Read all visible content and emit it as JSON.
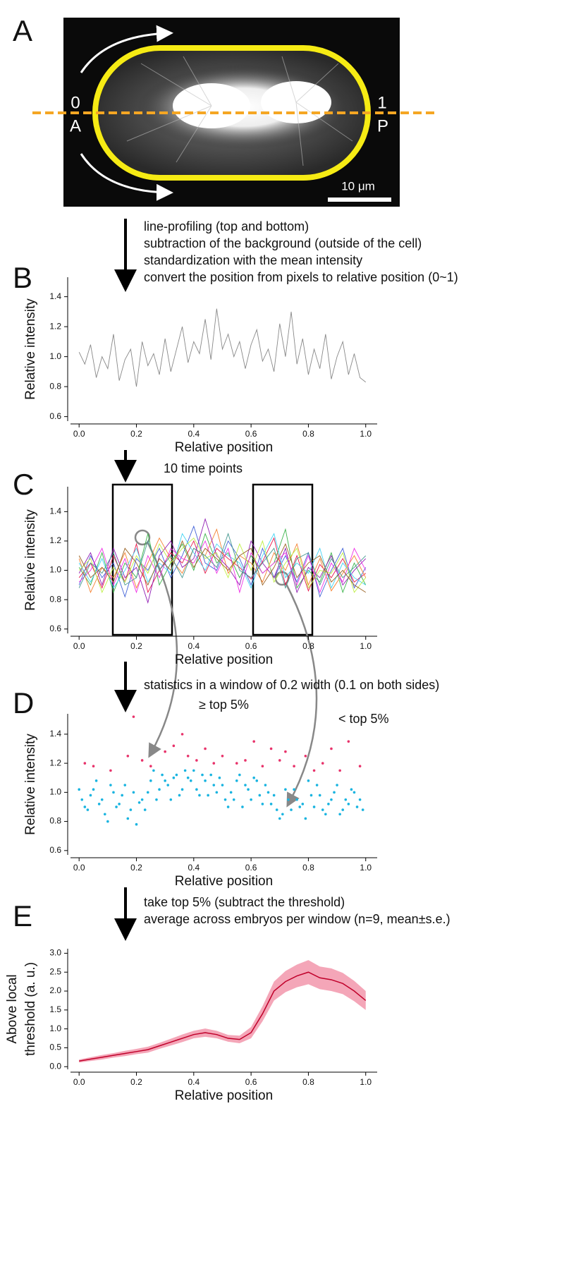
{
  "panel_a": {
    "label": "A",
    "left_index": "0",
    "left_end": "A",
    "right_index": "1",
    "right_end": "P",
    "scale_bar": "10 μm"
  },
  "steps": [
    [
      "line-profiling (top and bottom)",
      "subtraction of the background (outside of the cell)",
      "standardization with the mean intensity",
      "convert the position from pixels to relative position (0~1)"
    ],
    [
      "10 time points"
    ],
    [
      "statistics in a window of 0.2 width (0.1 on both sides)"
    ],
    [
      "take top 5% (subtract the threshold)",
      "average across embryos per window (n=9, mean±s.e.)"
    ]
  ],
  "chart_data": [
    {
      "panel": "B",
      "type": "line",
      "xlabel": "Relative position",
      "ylabel": "Relative intensity",
      "xlim": [
        -0.03,
        1.04
      ],
      "xticks": [
        {
          "value": 0,
          "label": "0.0"
        },
        0.2,
        0.4,
        0.6,
        0.8,
        {
          "value": 1,
          "label": "1.0"
        }
      ],
      "ylim": [
        0.57,
        1.53
      ],
      "yticks": [
        0.6,
        0.8,
        {
          "value": 1,
          "label": "1.0"
        },
        1.2,
        1.4
      ],
      "x": [
        0,
        0.02,
        0.04,
        0.06,
        0.08,
        0.1,
        0.12,
        0.14,
        0.16,
        0.18,
        0.2,
        0.22,
        0.24,
        0.26,
        0.28,
        0.3,
        0.32,
        0.34,
        0.36,
        0.38,
        0.4,
        0.42,
        0.44,
        0.46,
        0.48,
        0.5,
        0.52,
        0.54,
        0.56,
        0.58,
        0.6,
        0.62,
        0.64,
        0.66,
        0.68,
        0.7,
        0.72,
        0.74,
        0.76,
        0.78,
        0.8,
        0.82,
        0.84,
        0.86,
        0.88,
        0.9,
        0.92,
        0.94,
        0.96,
        0.98,
        1
      ],
      "series": [
        {
          "color": "#888888",
          "values": [
            1.03,
            0.95,
            1.08,
            0.86,
            1.0,
            0.92,
            1.15,
            0.84,
            0.98,
            1.05,
            0.8,
            1.1,
            0.94,
            1.02,
            0.88,
            1.12,
            0.9,
            1.05,
            1.2,
            0.96,
            1.1,
            1.02,
            1.25,
            0.98,
            1.32,
            1.05,
            1.15,
            1.0,
            1.1,
            0.92,
            1.08,
            1.18,
            0.97,
            1.05,
            0.9,
            1.22,
            1.0,
            1.3,
            0.95,
            1.12,
            0.88,
            1.05,
            0.92,
            1.15,
            0.85,
            1.0,
            1.1,
            0.88,
            1.02,
            0.86,
            0.83
          ]
        }
      ]
    },
    {
      "panel": "C",
      "type": "line",
      "xlabel": "Relative position",
      "ylabel": "Relative intensity",
      "xlim": [
        -0.03,
        1.04
      ],
      "xticks": [
        {
          "value": 0,
          "label": "0.0"
        },
        0.2,
        0.4,
        0.6,
        0.8,
        {
          "value": 1,
          "label": "1.0"
        }
      ],
      "ylim": [
        0.57,
        1.57
      ],
      "yticks": [
        0.6,
        0.8,
        {
          "value": 1,
          "label": "1.0"
        },
        1.2,
        1.4
      ],
      "x": [
        0,
        0.04,
        0.08,
        0.12,
        0.16,
        0.2,
        0.24,
        0.28,
        0.32,
        0.36,
        0.4,
        0.44,
        0.48,
        0.52,
        0.56,
        0.6,
        0.64,
        0.68,
        0.72,
        0.76,
        0.8,
        0.84,
        0.88,
        0.92,
        0.96,
        1
      ],
      "series": [
        {
          "color": "#e6194b",
          "values": [
            0.95,
            1.05,
            0.88,
            1.1,
            0.92,
            1.18,
            0.85,
            1.0,
            1.12,
            1.05,
            1.2,
            0.98,
            1.15,
            1.08,
            1.02,
            0.94,
            1.06,
            1.22,
            0.9,
            1.1,
            0.86,
            1.04,
            0.95,
            1.08,
            0.92,
            0.98
          ]
        },
        {
          "color": "#3cb44b",
          "values": [
            1.02,
            0.9,
            1.12,
            0.85,
            1.05,
            0.95,
            1.25,
            0.9,
            1.05,
            1.18,
            1.0,
            1.25,
            1.05,
            1.12,
            0.95,
            1.1,
            0.98,
            1.05,
            1.28,
            0.88,
            1.0,
            0.92,
            1.12,
            0.85,
            1.05,
            0.9
          ]
        },
        {
          "color": "#4363d8",
          "values": [
            0.9,
            1.1,
            0.95,
            1.05,
            0.82,
            1.08,
            1.0,
            1.15,
            0.95,
            1.1,
            1.3,
            1.05,
            1.0,
            1.2,
            1.08,
            0.9,
            1.15,
            0.95,
            1.1,
            0.92,
            1.12,
            0.82,
            1.0,
            1.15,
            0.88,
            1.02
          ]
        },
        {
          "color": "#f58231",
          "values": [
            1.08,
            0.85,
            1.02,
            0.95,
            1.12,
            0.88,
            1.05,
            1.22,
            1.08,
            0.98,
            1.15,
            1.1,
            1.28,
            0.98,
            1.1,
            1.05,
            0.92,
            1.12,
            1.0,
            1.18,
            0.9,
            1.08,
            0.86,
            0.98,
            1.1,
            0.95
          ]
        },
        {
          "color": "#911eb4",
          "values": [
            0.98,
            1.12,
            0.9,
            1.15,
            0.95,
            1.02,
            0.78,
            1.1,
            1.2,
            1.02,
            1.08,
            1.35,
            1.1,
            1.02,
            0.9,
            1.2,
            1.05,
            0.95,
            1.15,
            0.85,
            1.02,
            0.95,
            1.1,
            0.9,
            1.0,
            1.08
          ]
        },
        {
          "color": "#42d4f4",
          "values": [
            1.05,
            0.92,
            1.08,
            0.88,
            1.0,
            1.15,
            0.92,
            1.05,
            0.98,
            1.25,
            1.12,
            1.0,
            1.18,
            1.1,
            1.05,
            0.88,
            1.1,
            1.25,
            0.95,
            1.05,
            0.98,
            1.15,
            0.88,
            1.05,
            0.95,
            0.9
          ]
        },
        {
          "color": "#f032e6",
          "values": [
            0.92,
            1.0,
            1.15,
            0.9,
            1.08,
            0.85,
            1.1,
            0.95,
            1.15,
            1.08,
            1.05,
            1.2,
            0.98,
            1.15,
            0.85,
            1.12,
            0.98,
            1.05,
            1.12,
            0.9,
            1.1,
            0.85,
            1.05,
            0.92,
            1.15,
            1.0
          ]
        },
        {
          "color": "#bfef45",
          "values": [
            1.0,
            1.08,
            0.85,
            1.02,
            0.92,
            1.1,
            0.98,
            1.18,
            1.05,
            1.15,
            1.22,
            1.08,
            1.12,
            0.95,
            1.18,
            1.0,
            1.2,
            0.92,
            1.05,
            1.15,
            0.88,
            1.0,
            0.98,
            1.12,
            0.85,
            0.95
          ]
        },
        {
          "color": "#469990",
          "values": [
            0.88,
            1.05,
            0.98,
            1.12,
            0.9,
            0.95,
            1.2,
            1.0,
            1.1,
            0.95,
            1.15,
            1.1,
            1.02,
            1.25,
            1.0,
            0.95,
            1.05,
            1.15,
            0.88,
            1.08,
            1.12,
            0.9,
            1.08,
            0.95,
            1.02,
            1.1
          ]
        },
        {
          "color": "#9a6324",
          "values": [
            1.1,
            0.95,
            1.02,
            0.92,
            1.15,
            1.05,
            0.9,
            1.08,
            1.0,
            1.2,
            1.02,
            1.15,
            1.08,
            1.0,
            1.1,
            1.15,
            0.9,
            1.02,
            1.18,
            0.95,
            1.05,
            1.1,
            0.92,
            1.0,
            0.9,
            0.85
          ]
        }
      ]
    },
    {
      "panel": "D",
      "type": "scatter",
      "xlabel": "Relative position",
      "ylabel": "Relative intensity",
      "annotations": [
        "≥ top 5%",
        "< top 5%"
      ],
      "xlim": [
        -0.03,
        1.04
      ],
      "xticks": [
        {
          "value": 0,
          "label": "0.0"
        },
        0.2,
        0.4,
        0.6,
        0.8,
        {
          "value": 1,
          "label": "1.0"
        }
      ],
      "ylim": [
        0.57,
        1.54
      ],
      "yticks": [
        0.6,
        0.8,
        {
          "value": 1,
          "label": "1.0"
        },
        1.2,
        1.4
      ],
      "series": [
        {
          "color": "#19b4e0",
          "x": [
            0.01,
            0.03,
            0.05,
            0.07,
            0.09,
            0.11,
            0.13,
            0.15,
            0.17,
            0.19,
            0.21,
            0.23,
            0.25,
            0.27,
            0.29,
            0.31,
            0.33,
            0.35,
            0.37,
            0.39,
            0.41,
            0.43,
            0.45,
            0.47,
            0.49,
            0.51,
            0.53,
            0.55,
            0.57,
            0.59,
            0.61,
            0.63,
            0.65,
            0.67,
            0.69,
            0.71,
            0.73,
            0.75,
            0.77,
            0.79,
            0.81,
            0.83,
            0.85,
            0.87,
            0.89,
            0.91,
            0.93,
            0.95,
            0.97,
            0.99,
            0,
            0.02,
            0.04,
            0.06,
            0.08,
            0.1,
            0.12,
            0.14,
            0.16,
            0.18,
            0.2,
            0.22,
            0.24,
            0.26,
            0.28,
            0.3,
            0.32,
            0.34,
            0.36,
            0.38,
            0.4,
            0.42,
            0.44,
            0.46,
            0.48,
            0.5,
            0.52,
            0.54,
            0.56,
            0.58,
            0.6,
            0.62,
            0.64,
            0.66,
            0.68,
            0.7,
            0.72,
            0.74,
            0.76,
            0.78,
            0.8,
            0.82,
            0.84,
            0.86,
            0.88,
            0.9,
            0.92,
            0.94,
            0.96,
            0.98
          ],
          "values": [
            0.95,
            0.88,
            1.02,
            0.92,
            0.85,
            1.05,
            0.9,
            0.98,
            0.82,
            1.0,
            0.93,
            0.88,
            1.08,
            0.95,
            1.12,
            1.05,
            1.1,
            0.98,
            1.15,
            1.08,
            1.02,
            1.12,
            0.98,
            1.05,
            1.1,
            0.95,
            1.0,
            1.08,
            0.9,
            1.02,
            1.1,
            0.98,
            1.05,
            0.92,
            0.88,
            0.85,
            0.95,
            1.02,
            0.9,
            0.82,
            0.98,
            1.05,
            0.88,
            0.92,
            1.0,
            0.85,
            0.95,
            1.02,
            0.9,
            0.88,
            1.02,
            0.9,
            0.98,
            1.08,
            0.95,
            0.8,
            1.0,
            0.92,
            1.05,
            0.88,
            0.78,
            0.95,
            1.0,
            1.15,
            1.02,
            1.08,
            0.95,
            1.12,
            1.02,
            1.1,
            1.15,
            0.98,
            1.08,
            1.12,
            1.0,
            1.05,
            0.9,
            0.95,
            1.12,
            1.05,
            0.95,
            1.08,
            0.92,
            1.0,
            0.98,
            0.82,
            1.02,
            0.88,
            0.95,
            0.92,
            1.08,
            0.9,
            0.98,
            0.85,
            0.95,
            1.05,
            0.88,
            0.92,
            1.0,
            0.95
          ]
        },
        {
          "color": "#e8336b",
          "x": [
            0.02,
            0.05,
            0.11,
            0.17,
            0.19,
            0.22,
            0.25,
            0.3,
            0.33,
            0.36,
            0.38,
            0.41,
            0.44,
            0.47,
            0.5,
            0.55,
            0.58,
            0.61,
            0.64,
            0.67,
            0.7,
            0.72,
            0.75,
            0.79,
            0.82,
            0.85,
            0.88,
            0.91,
            0.94,
            0.98
          ],
          "values": [
            1.2,
            1.18,
            1.15,
            1.25,
            1.52,
            1.22,
            1.18,
            1.28,
            1.32,
            1.4,
            1.25,
            1.22,
            1.3,
            1.2,
            1.25,
            1.2,
            1.22,
            1.35,
            1.18,
            1.3,
            1.22,
            1.28,
            1.18,
            1.25,
            1.15,
            1.2,
            1.3,
            1.15,
            1.35,
            1.18
          ]
        }
      ]
    },
    {
      "panel": "E",
      "type": "line",
      "xlabel": "Relative position",
      "ylabel": [
        "Above local",
        "threshold (a. u.)"
      ],
      "xlim": [
        -0.03,
        1.04
      ],
      "xticks": [
        {
          "value": 0,
          "label": "0.0"
        },
        0.2,
        0.4,
        0.6,
        0.8,
        {
          "value": 1,
          "label": "1.0"
        }
      ],
      "ylim": [
        -0.07,
        3.12
      ],
      "yticks": [
        {
          "value": 0,
          "label": "0.0"
        },
        0.5,
        {
          "value": 1,
          "label": "1.0"
        },
        1.5,
        {
          "value": 2,
          "label": "2.0"
        },
        2.5,
        {
          "value": 3,
          "label": "3.0"
        }
      ],
      "x": [
        0,
        0.04,
        0.08,
        0.12,
        0.16,
        0.2,
        0.24,
        0.28,
        0.32,
        0.36,
        0.4,
        0.44,
        0.48,
        0.52,
        0.56,
        0.6,
        0.64,
        0.68,
        0.72,
        0.76,
        0.8,
        0.84,
        0.88,
        0.92,
        0.96,
        1
      ],
      "series": [
        {
          "color": "#c0002a",
          "band_color": "#f4a6b8",
          "values": [
            0.15,
            0.2,
            0.25,
            0.3,
            0.35,
            0.4,
            0.45,
            0.55,
            0.65,
            0.75,
            0.85,
            0.9,
            0.85,
            0.75,
            0.72,
            0.9,
            1.4,
            2.0,
            2.25,
            2.4,
            2.5,
            2.35,
            2.3,
            2.2,
            2.0,
            1.75
          ],
          "errors": [
            0.04,
            0.05,
            0.06,
            0.06,
            0.07,
            0.07,
            0.08,
            0.08,
            0.09,
            0.1,
            0.1,
            0.11,
            0.1,
            0.09,
            0.1,
            0.15,
            0.2,
            0.25,
            0.28,
            0.3,
            0.32,
            0.3,
            0.3,
            0.28,
            0.27,
            0.25
          ]
        }
      ]
    }
  ]
}
